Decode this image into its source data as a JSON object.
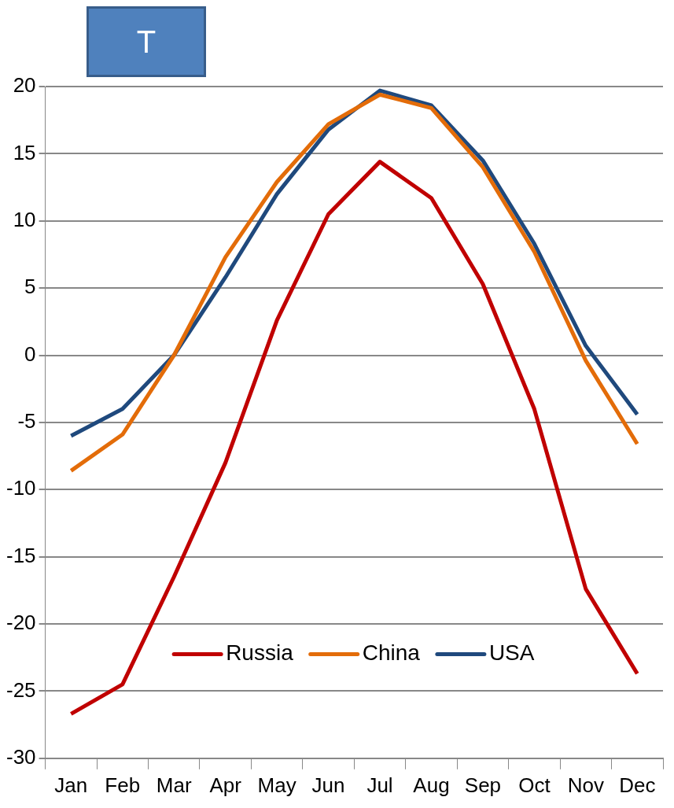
{
  "chart_data": {
    "type": "line",
    "title": "T",
    "categories": [
      "Jan",
      "Feb",
      "Mar",
      "Apr",
      "May",
      "Jun",
      "Jul",
      "Aug",
      "Sep",
      "Oct",
      "Nov",
      "Dec"
    ],
    "series": [
      {
        "name": "Russia",
        "color": "#c00000",
        "values": [
          -26.7,
          -24.5,
          -16.5,
          -8,
          2.6,
          10.5,
          14.4,
          11.7,
          5.3,
          -4,
          -17.4,
          -23.7
        ]
      },
      {
        "name": "China",
        "color": "#e36c09",
        "values": [
          -8.6,
          -5.9,
          0,
          7.3,
          12.9,
          17.2,
          19.4,
          18.4,
          14,
          7.7,
          -0.4,
          -6.6
        ]
      },
      {
        "name": "USA",
        "color": "#1f497d",
        "values": [
          -6,
          -4,
          0,
          5.8,
          12,
          16.8,
          19.7,
          18.6,
          14.5,
          8.3,
          0.7,
          -4.4
        ]
      }
    ],
    "ylim": [
      -30,
      20
    ],
    "yticks": [
      -30,
      -25,
      -20,
      -15,
      -10,
      -5,
      0,
      5,
      10,
      15,
      20
    ],
    "grid": "y",
    "legend": "bottom",
    "marker": "none",
    "line_style": "solid"
  }
}
